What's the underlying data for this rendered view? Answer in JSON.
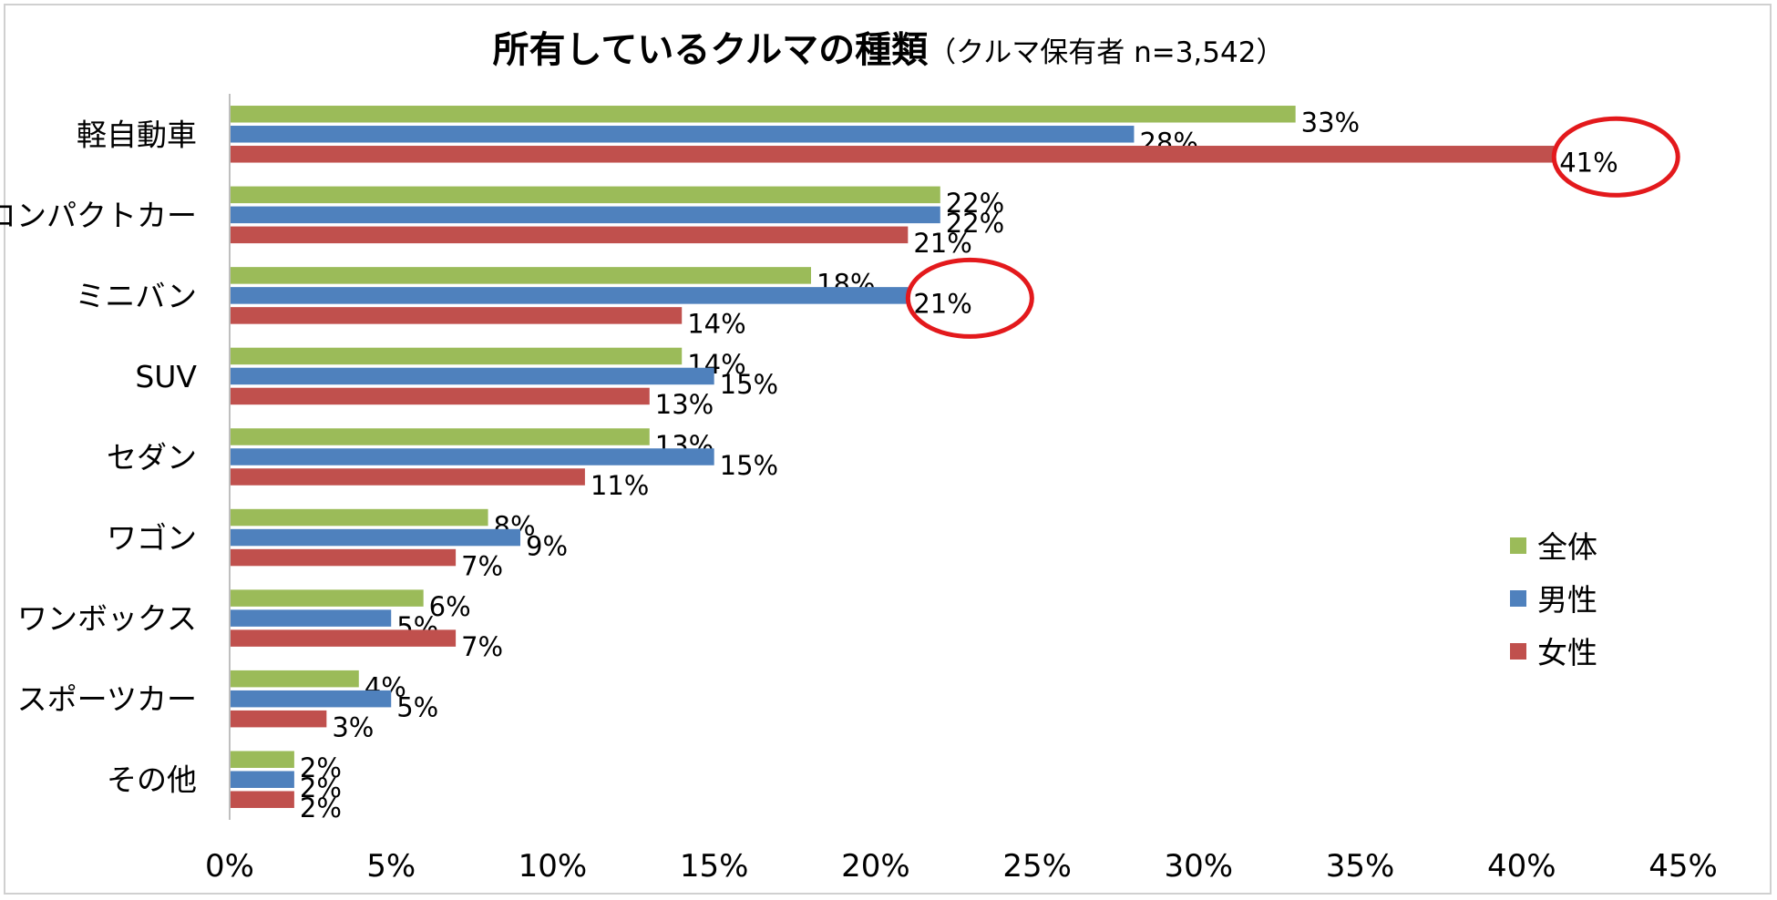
{
  "chart_data": {
    "type": "bar",
    "orientation": "horizontal",
    "title": "所有しているクルマの種類",
    "subtitle": "（クルマ保有者 n=3,542）",
    "categories": [
      "軽自動車",
      "コンパクトカー",
      "ミニバン",
      "SUV",
      "セダン",
      "ワゴン",
      "ワンボックス",
      "スポーツカー",
      "その他"
    ],
    "series": [
      {
        "name": "全体",
        "color": "#9BBB59",
        "values": [
          33,
          22,
          18,
          14,
          13,
          8,
          6,
          4,
          2
        ]
      },
      {
        "name": "男性",
        "color": "#4F81BD",
        "values": [
          28,
          22,
          21,
          15,
          15,
          9,
          5,
          5,
          2
        ]
      },
      {
        "name": "女性",
        "color": "#C0504D",
        "values": [
          41,
          21,
          14,
          13,
          11,
          7,
          7,
          3,
          2
        ]
      }
    ],
    "value_suffix": "%",
    "xlim": [
      0,
      45
    ],
    "xticks": [
      "0%",
      "5%",
      "10%",
      "15%",
      "20%",
      "25%",
      "30%",
      "35%",
      "40%",
      "45%"
    ],
    "xlabel": "",
    "ylabel": "",
    "grid": false,
    "legend_position": "right",
    "annotations": [
      {
        "type": "circle",
        "color": "#E3191C",
        "category": "軽自動車",
        "series": "女性"
      },
      {
        "type": "circle",
        "color": "#E3191C",
        "category": "ミニバン",
        "series": "男性"
      }
    ]
  }
}
